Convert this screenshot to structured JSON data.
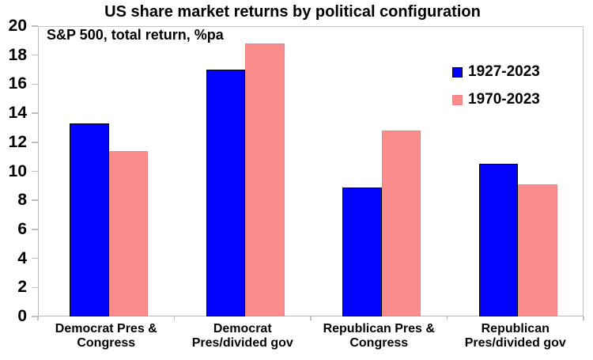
{
  "chart_data": {
    "type": "bar",
    "title": "US share market returns by political configuration",
    "subtitle": "S&P 500, total return, %pa",
    "categories": [
      [
        "Democrat Pres &",
        "Congress"
      ],
      [
        "Democrat",
        "Pres/divided gov"
      ],
      [
        "Republican Pres &",
        "Congress"
      ],
      [
        "Republican",
        "Pres/divided gov"
      ]
    ],
    "series": [
      {
        "name": "1927-2023",
        "color": "#0202FC",
        "values": [
          13.3,
          17.0,
          8.9,
          10.5
        ]
      },
      {
        "name": "1970-2023",
        "color": "#FA8C8C",
        "values": [
          11.4,
          18.8,
          12.8,
          9.1
        ]
      }
    ],
    "ylim": [
      0,
      20
    ],
    "ytick_step": 2,
    "ytick_labels": [
      "0",
      "2",
      "4",
      "6",
      "8",
      "10",
      "12",
      "14",
      "16",
      "18",
      "20"
    ],
    "grid": false,
    "legend_position": "top-right",
    "xlabel": "",
    "ylabel": ""
  },
  "colors": {
    "blue_series": "#0202FC",
    "pink_series": "#FA8C8C",
    "blue_bar_border": "#000000",
    "pink_bar_border": "#EE8286",
    "axis_line": "#BFBFBF",
    "text": "#000000"
  }
}
